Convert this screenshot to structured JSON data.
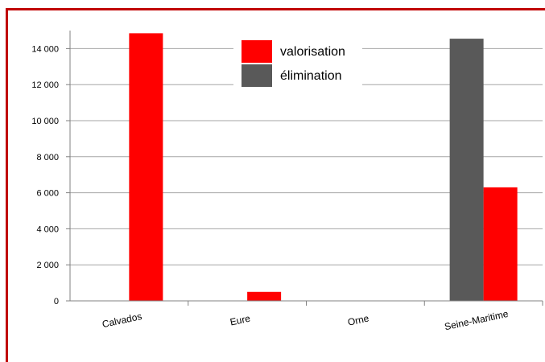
{
  "chart_data": {
    "type": "bar",
    "categories": [
      "Calvados",
      "Eure",
      "Orne",
      "Seine-Maritime"
    ],
    "series": [
      {
        "name": "élimination",
        "color": "#595959",
        "values": [
          0,
          0,
          0,
          14550
        ]
      },
      {
        "name": "valorisation",
        "color": "#ff0000",
        "values": [
          14850,
          500,
          0,
          6300
        ]
      }
    ],
    "ylim": [
      0,
      15000
    ],
    "yticks": [
      0,
      2000,
      4000,
      6000,
      8000,
      10000,
      12000,
      14000
    ],
    "ytick_labels": [
      "0",
      "2 000",
      "4 000",
      "6 000",
      "8 000",
      "10 000",
      "12 000",
      "14 000"
    ],
    "grid": true,
    "legend": [
      {
        "name": "valorisation",
        "color": "#ff0000"
      },
      {
        "name": "élimination",
        "color": "#595959"
      }
    ],
    "legend_position": "top-center"
  }
}
